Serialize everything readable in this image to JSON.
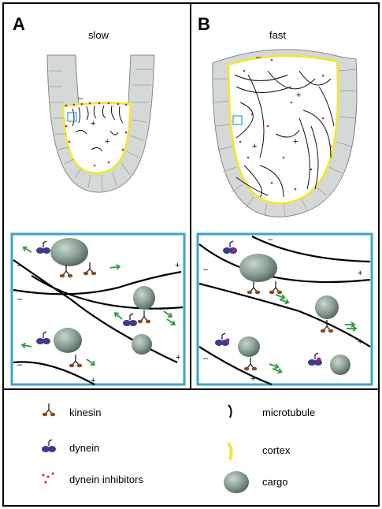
{
  "panels": [
    {
      "letter": "A",
      "speed": "slow"
    },
    {
      "letter": "B",
      "speed": "fast"
    }
  ],
  "legend": {
    "kinesin": "kinesin",
    "dynein": "dynein",
    "dynein_inhibitors": "dynein inhibitors",
    "microtubule": "microtubule",
    "cortex": "cortex",
    "cargo": "cargo"
  },
  "colors": {
    "frame": "#000000",
    "box": "#3aa6c8",
    "cortex": "#f0e640",
    "inhibitor": "#c2187a",
    "dynein": "#3c3c8c",
    "kinesin": "#8a4a1e",
    "cargo": "#7f968a",
    "arrow": "#2a9a3a",
    "cell_wall": "#d4d8d6"
  }
}
